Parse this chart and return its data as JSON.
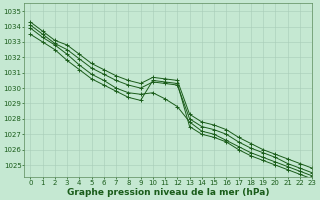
{
  "title": "Graphe pression niveau de la mer (hPa)",
  "bg_color": "#c5e8d2",
  "grid_color": "#a8cdb8",
  "line_color": "#1a5c1a",
  "xlim": [
    -0.5,
    23
  ],
  "ylim": [
    1024.2,
    1035.5
  ],
  "yticks": [
    1025,
    1026,
    1027,
    1028,
    1029,
    1030,
    1031,
    1032,
    1033,
    1034,
    1035
  ],
  "xticks": [
    0,
    1,
    2,
    3,
    4,
    5,
    6,
    7,
    8,
    9,
    10,
    11,
    12,
    13,
    14,
    15,
    16,
    17,
    18,
    19,
    20,
    21,
    22,
    23
  ],
  "series": [
    [
      1034.3,
      1033.7,
      1033.1,
      1032.8,
      1032.2,
      1031.6,
      1031.2,
      1030.8,
      1030.5,
      1030.3,
      1030.7,
      1030.6,
      1030.5,
      1028.3,
      1027.8,
      1027.6,
      1027.3,
      1026.8,
      1026.4,
      1026.0,
      1025.7,
      1025.4,
      1025.1,
      1024.8
    ],
    [
      1034.1,
      1033.5,
      1032.9,
      1032.5,
      1031.9,
      1031.3,
      1030.9,
      1030.5,
      1030.2,
      1030.0,
      1030.4,
      1030.3,
      1030.2,
      1028.0,
      1027.5,
      1027.3,
      1027.0,
      1026.5,
      1026.1,
      1025.8,
      1025.5,
      1025.1,
      1024.8,
      1024.5
    ],
    [
      1033.9,
      1033.3,
      1032.8,
      1032.2,
      1031.5,
      1030.9,
      1030.5,
      1030.0,
      1029.7,
      1029.6,
      1029.7,
      1029.3,
      1028.8,
      1027.8,
      1027.2,
      1027.0,
      1026.6,
      1026.2,
      1025.8,
      1025.5,
      1025.2,
      1024.9,
      1024.6,
      1024.3
    ],
    [
      1033.5,
      1033.0,
      1032.5,
      1031.8,
      1031.2,
      1030.6,
      1030.2,
      1029.8,
      1029.4,
      1029.2,
      1030.5,
      1030.4,
      1030.3,
      1027.5,
      1027.0,
      1026.8,
      1026.5,
      1026.0,
      1025.6,
      1025.3,
      1025.0,
      1024.7,
      1024.4,
      1024.1
    ]
  ],
  "marker": "+",
  "markersize": 3,
  "linewidth": 0.7,
  "title_fontsize": 6.5,
  "tick_fontsize": 5,
  "tick_color": "#1a5c1a",
  "title_color": "#1a5c1a",
  "spine_color": "#5a8a5a"
}
